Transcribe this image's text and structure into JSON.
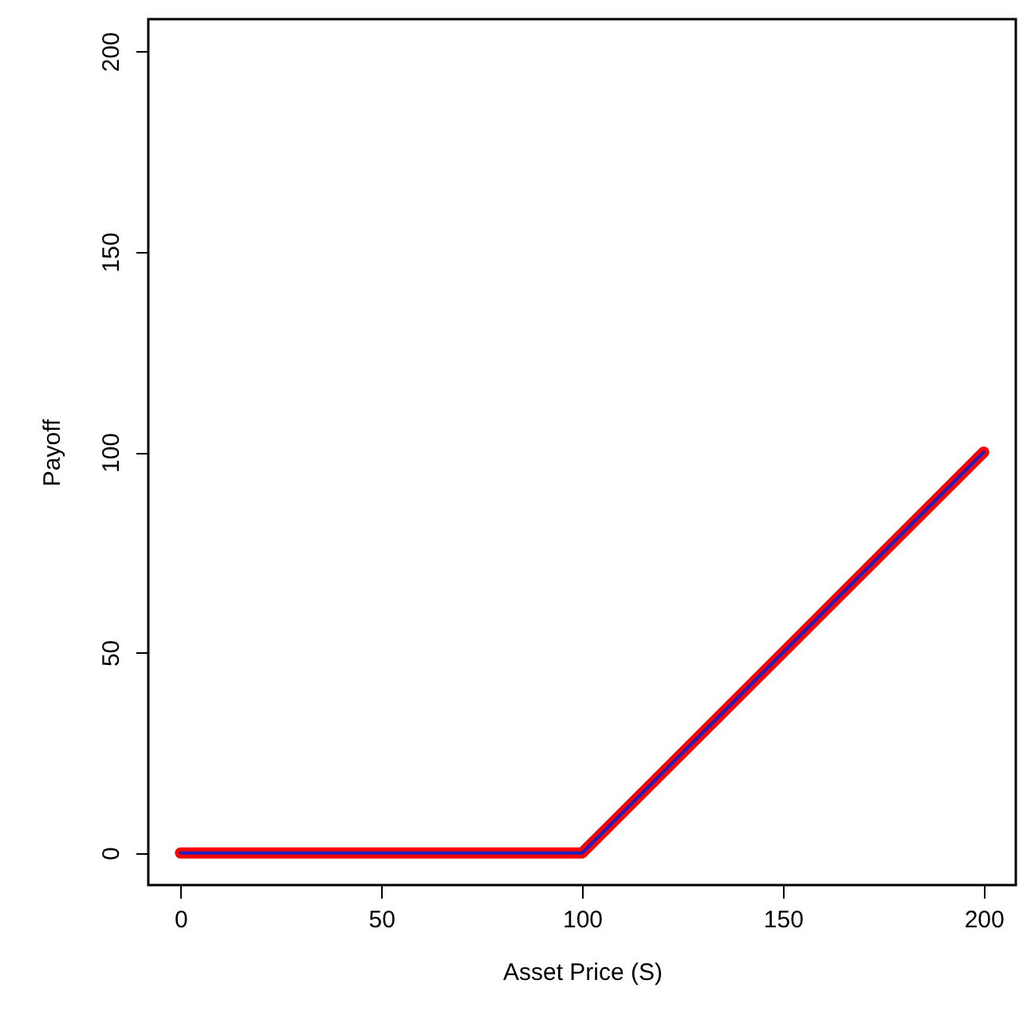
{
  "chart_data": {
    "type": "line",
    "xlabel": "Asset Price (S)",
    "ylabel": "Payoff",
    "x": [
      0,
      100,
      200
    ],
    "series": [
      {
        "color": "#ff0000",
        "values": [
          0,
          0,
          100
        ]
      },
      {
        "color": "#2020c0",
        "values": [
          0,
          0,
          100
        ]
      }
    ],
    "xlim": [
      -8,
      208
    ],
    "ylim": [
      -8,
      208
    ],
    "xticks": [
      0,
      50,
      100,
      150,
      200
    ],
    "yticks": [
      0,
      50,
      100,
      150,
      200
    ],
    "marker": "none",
    "line_style": "solid"
  }
}
